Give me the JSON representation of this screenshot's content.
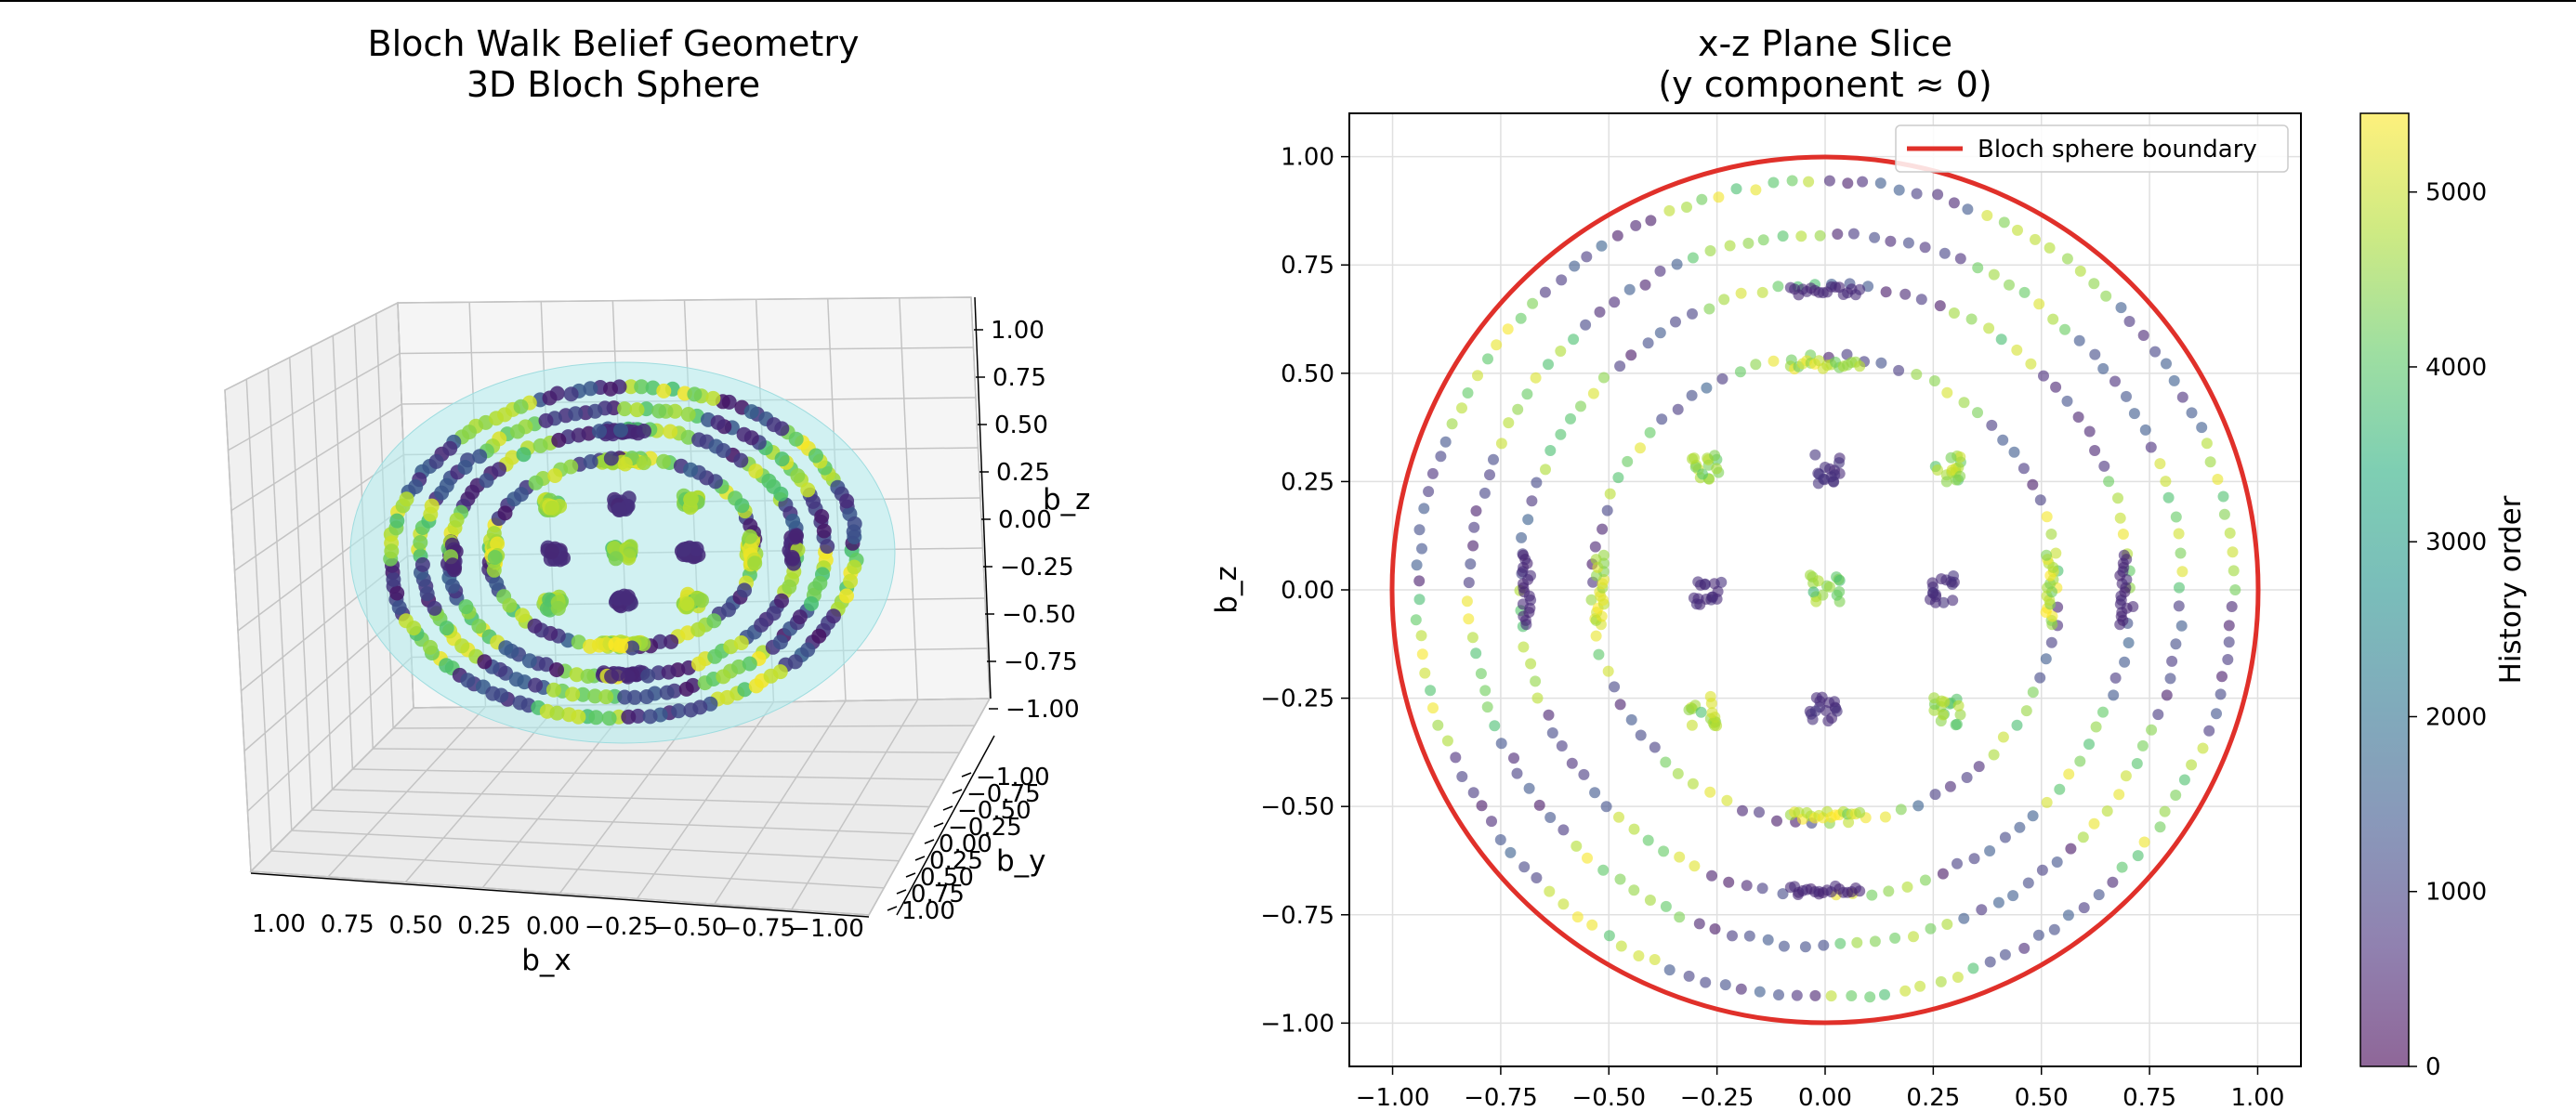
{
  "colors": {
    "boundary": "#e0302a",
    "sphere_fill": "#b2ecee",
    "pane_left": "#f0f0f0",
    "pane_right": "#f5f5f5",
    "pane_floor": "#ebebeb",
    "grid": "#cccccc",
    "viridis": [
      "#440154",
      "#472d7b",
      "#3b528b",
      "#2c728e",
      "#21918c",
      "#28ae80",
      "#5ec962",
      "#addc30",
      "#fde725"
    ]
  },
  "chart_data": [
    {
      "type": "scatter",
      "projection": "3d",
      "title_line1": "Bloch Walk Belief Geometry",
      "title_line2": "3D Bloch Sphere",
      "xlabel": "b_x",
      "ylabel": "b_y",
      "zlabel": "b_z",
      "xlim": [
        -1.0,
        1.0
      ],
      "ylim": [
        -1.0,
        1.0
      ],
      "zlim": [
        -1.0,
        1.0
      ],
      "x_ticks": [
        "1.00",
        "0.75",
        "0.50",
        "0.25",
        "0.00",
        "−0.25",
        "−0.50",
        "−0.75",
        "−1.00"
      ],
      "y_ticks": [
        "−1.00",
        "−0.75",
        "−0.50",
        "−0.25",
        "0.00",
        "0.25",
        "0.50",
        "0.75",
        "1.00"
      ],
      "z_ticks": [
        "1.00",
        "0.75",
        "0.50",
        "0.25",
        "0.00",
        "−0.25",
        "−0.50",
        "−0.75",
        "−1.00"
      ],
      "sphere_surface": "translucent unit sphere, light cyan",
      "points": "same Bloch-walk belief states as the x-z slice, coloured by history order",
      "grid": true
    },
    {
      "type": "scatter",
      "title_line1": "x-z Plane Slice",
      "title_line2": "(y component ≈ 0)",
      "xlabel": "",
      "ylabel": "b_z",
      "xlim": [
        -1.1,
        1.1
      ],
      "ylim": [
        -1.1,
        1.1
      ],
      "x_ticks": [
        -1.0,
        -0.75,
        -0.5,
        -0.25,
        0.0,
        0.25,
        0.5,
        0.75,
        1.0
      ],
      "y_ticks": [
        -1.0,
        -0.75,
        -0.5,
        -0.25,
        0.0,
        0.25,
        0.5,
        0.75,
        1.0
      ],
      "x_tick_labels": [
        "−1.00",
        "−0.75",
        "−0.50",
        "−0.25",
        "0.00",
        "0.25",
        "0.50",
        "0.75",
        "1.00"
      ],
      "y_tick_labels": [
        "−1.00",
        "−0.75",
        "−0.50",
        "−0.25",
        "0.00",
        "0.25",
        "0.50",
        "0.75",
        "1.00"
      ],
      "grid": true,
      "legend": {
        "placement": "upper right",
        "label": "Bloch sphere boundary"
      },
      "boundary_circle": {
        "center": [
          0.0,
          0.0
        ],
        "radius": 1.0
      },
      "colorbar": {
        "label": "History order",
        "range": [
          0,
          5450
        ],
        "ticks": [
          0,
          1000,
          2000,
          3000,
          4000,
          5000
        ],
        "tick_labels": [
          "0",
          "1000",
          "2000",
          "3000",
          "4000",
          "5000"
        ],
        "colormap": "viridis",
        "alpha": 0.6
      },
      "point_alpha": 0.6,
      "clusters": [
        {
          "kind": "ring",
          "radius": 0.943,
          "order_min": 0,
          "order_max": 5400
        },
        {
          "kind": "ring",
          "radius": 0.823,
          "order_min": 0,
          "order_max": 5400
        },
        {
          "kind": "ring",
          "radius": 0.707,
          "order_min": 0,
          "order_max": 5400
        },
        {
          "kind": "ring",
          "radius": 0.54,
          "order_min": 0,
          "order_max": 5400
        },
        {
          "kind": "blob",
          "x": 0.0,
          "z": 0.0,
          "order": 4200
        },
        {
          "kind": "blob",
          "x": -0.27,
          "z": 0.0,
          "order": 700
        },
        {
          "kind": "blob",
          "x": 0.27,
          "z": 0.0,
          "order": 700
        },
        {
          "kind": "blob",
          "x": 0.0,
          "z": 0.28,
          "order": 700
        },
        {
          "kind": "blob",
          "x": 0.0,
          "z": -0.28,
          "order": 700
        },
        {
          "kind": "blob",
          "x": -0.28,
          "z": 0.28,
          "order": 4500
        },
        {
          "kind": "blob",
          "x": 0.28,
          "z": 0.28,
          "order": 4500
        },
        {
          "kind": "blob",
          "x": -0.28,
          "z": -0.28,
          "order": 4500
        },
        {
          "kind": "blob",
          "x": 0.28,
          "z": -0.28,
          "order": 4500
        },
        {
          "kind": "arc",
          "x": 0.0,
          "z": 0.52,
          "order": 4900
        },
        {
          "kind": "arc",
          "x": 0.0,
          "z": -0.52,
          "order": 4900
        },
        {
          "kind": "arc",
          "x": -0.52,
          "z": 0.0,
          "order": 4900
        },
        {
          "kind": "arc",
          "x": 0.52,
          "z": 0.0,
          "order": 4900
        },
        {
          "kind": "arc",
          "x": 0.0,
          "z": 0.69,
          "order": 600
        },
        {
          "kind": "arc",
          "x": 0.0,
          "z": -0.69,
          "order": 600
        },
        {
          "kind": "arc",
          "x": -0.69,
          "z": 0.0,
          "order": 600
        },
        {
          "kind": "arc",
          "x": 0.69,
          "z": 0.0,
          "order": 600
        }
      ]
    }
  ]
}
